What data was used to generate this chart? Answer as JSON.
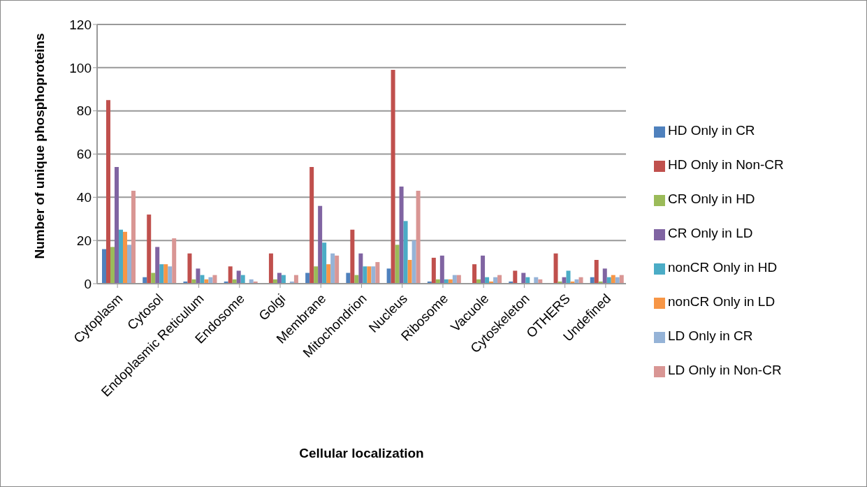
{
  "chart_data": {
    "type": "bar",
    "xlabel": "Cellular localization",
    "ylabel": "Number of unique phosphoproteins",
    "categories": [
      "Cytoplasm",
      "Cytosol",
      "Endoplasmic Reticulum",
      "Endosome",
      "Golgi",
      "Membrane",
      "Mitochondrion",
      "Nucleus",
      "Ribosome",
      "Vacuole",
      "Cytoskeleton",
      "OTHERS",
      "Undefined"
    ],
    "series": [
      {
        "name": "HD Only in CR",
        "color": "#4f81bd",
        "values": [
          16,
          3,
          1,
          1,
          0,
          5,
          5,
          7,
          1,
          0,
          1,
          0,
          3
        ]
      },
      {
        "name": "HD Only in Non-CR",
        "color": "#c0504d",
        "values": [
          85,
          32,
          14,
          8,
          14,
          54,
          25,
          99,
          12,
          9,
          6,
          14,
          11
        ]
      },
      {
        "name": "CR Only in HD",
        "color": "#9bbb59",
        "values": [
          17,
          5,
          2,
          2,
          2,
          8,
          4,
          18,
          2,
          2,
          0,
          1,
          1
        ]
      },
      {
        "name": "CR Only in LD",
        "color": "#8064a2",
        "values": [
          54,
          17,
          7,
          6,
          5,
          36,
          14,
          45,
          13,
          13,
          5,
          3,
          7
        ]
      },
      {
        "name": "nonCR Only in HD",
        "color": "#4bacc6",
        "values": [
          25,
          9,
          4,
          4,
          4,
          19,
          8,
          29,
          2,
          3,
          3,
          6,
          3
        ]
      },
      {
        "name": "nonCR Only in LD",
        "color": "#f79646",
        "values": [
          24,
          9,
          2,
          0,
          0,
          9,
          8,
          11,
          2,
          1,
          0,
          1,
          4
        ]
      },
      {
        "name": "LD Only in CR",
        "color": "#95b3d7",
        "values": [
          18,
          8,
          3,
          2,
          1,
          14,
          8,
          20,
          4,
          3,
          3,
          2,
          3
        ]
      },
      {
        "name": "LD Only in Non-CR",
        "color": "#d99694",
        "values": [
          43,
          21,
          4,
          1,
          4,
          13,
          10,
          43,
          4,
          4,
          2,
          3,
          4
        ]
      }
    ],
    "ylim": [
      0,
      120
    ],
    "yticks": [
      0,
      20,
      40,
      60,
      80,
      100,
      120
    ],
    "grid": "y",
    "legend": "right"
  }
}
